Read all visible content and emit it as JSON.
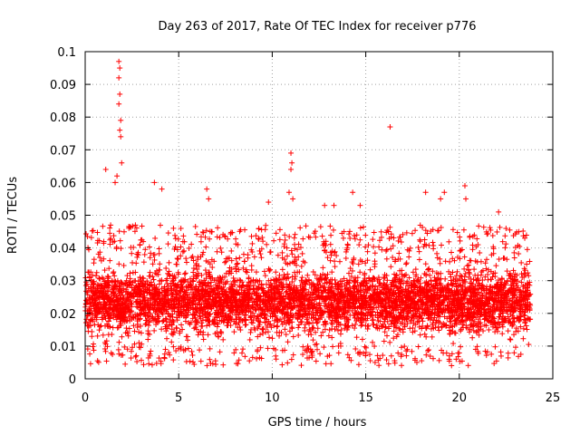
{
  "chart_data": {
    "type": "scatter",
    "title": "Day 263 of 2017, Rate Of TEC Index for receiver p776",
    "xlabel": "GPS time / hours",
    "ylabel": "ROTI / TECUs",
    "xlim": [
      0,
      25
    ],
    "ylim": [
      0,
      0.1
    ],
    "x_ticks": [
      "0",
      "5",
      "10",
      "15",
      "20",
      "25"
    ],
    "y_ticks": [
      "0",
      "0.01",
      "0.02",
      "0.03",
      "0.04",
      "0.05",
      "0.06",
      "0.07",
      "0.08",
      "0.09",
      "0.1"
    ],
    "grid": true,
    "marker": "+",
    "color": "#ff0000",
    "x_range_of_data": [
      0,
      23.8
    ],
    "typical_band": [
      0.008,
      0.035
    ],
    "series": [
      {
        "points": [
          [
            1.8,
            0.097
          ],
          [
            1.85,
            0.095
          ],
          [
            1.8,
            0.092
          ],
          [
            1.85,
            0.087
          ],
          [
            1.8,
            0.084
          ],
          [
            1.9,
            0.079
          ],
          [
            1.85,
            0.076
          ],
          [
            1.9,
            0.074
          ],
          [
            1.95,
            0.066
          ],
          [
            1.1,
            0.064
          ],
          [
            1.6,
            0.06
          ],
          [
            1.7,
            0.062
          ],
          [
            3.7,
            0.06
          ],
          [
            4.1,
            0.058
          ],
          [
            6.5,
            0.058
          ],
          [
            6.6,
            0.055
          ],
          [
            9.8,
            0.054
          ],
          [
            11.0,
            0.069
          ],
          [
            11.05,
            0.066
          ],
          [
            11.0,
            0.064
          ],
          [
            10.9,
            0.057
          ],
          [
            11.1,
            0.055
          ],
          [
            12.8,
            0.053
          ],
          [
            13.3,
            0.053
          ],
          [
            14.3,
            0.057
          ],
          [
            14.7,
            0.053
          ],
          [
            16.3,
            0.077
          ],
          [
            18.2,
            0.057
          ],
          [
            19.0,
            0.055
          ],
          [
            19.2,
            0.057
          ],
          [
            20.3,
            0.059
          ],
          [
            20.35,
            0.055
          ],
          [
            22.1,
            0.051
          ],
          [
            23.5,
            0.043
          ]
        ]
      }
    ]
  }
}
